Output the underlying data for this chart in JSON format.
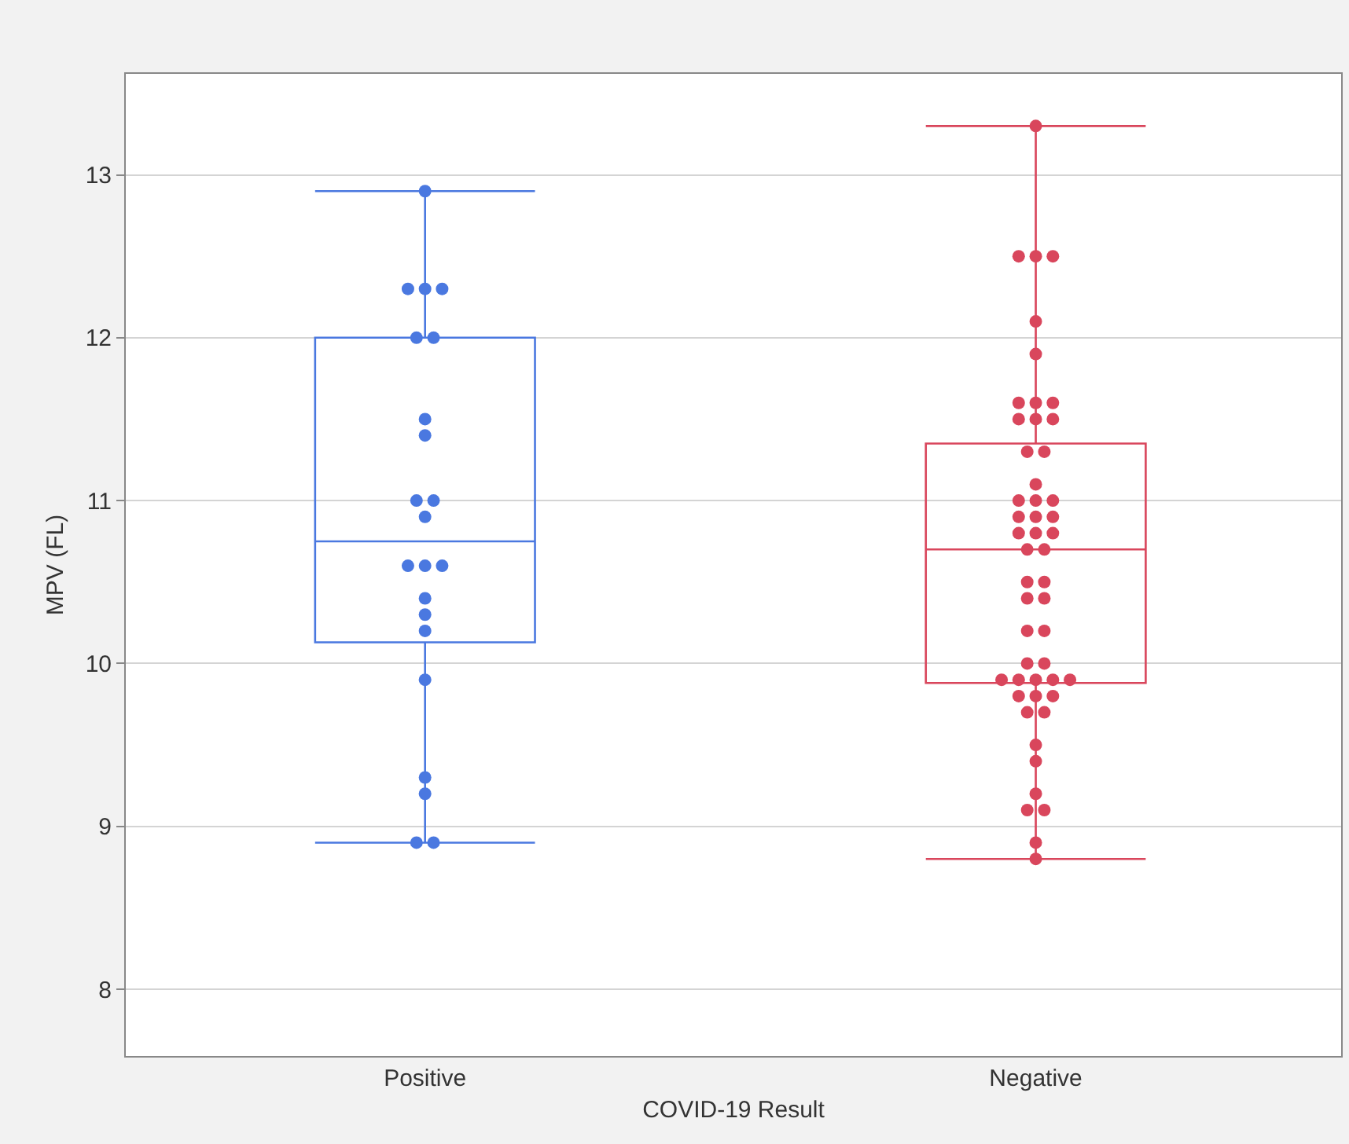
{
  "chart_data": {
    "type": "box",
    "xlabel": "COVID-19 Result",
    "ylabel": "MPV (FL)",
    "categories": [
      "Positive",
      "Negative"
    ],
    "ylim": [
      7.59,
      13.62
    ],
    "yticks": [
      8,
      9,
      10,
      11,
      12,
      13
    ],
    "grid": "y",
    "marker": "circle",
    "series": [
      {
        "color": "#4a78e0",
        "boxes": [
          {
            "low": 8.9,
            "q1": 10.13,
            "median": 10.75,
            "q3": 12.0,
            "high": 12.9
          },
          null
        ]
      },
      {
        "color": "#d9465c",
        "boxes": [
          null,
          {
            "low": 8.8,
            "q1": 9.88,
            "median": 10.7,
            "q3": 11.35,
            "high": 13.3
          }
        ]
      },
      {
        "type": "scatter",
        "color": "#4a78e0",
        "x": [
          "Positive",
          "Positive",
          "Positive",
          "Positive",
          "Positive",
          "Positive",
          "Positive",
          "Positive",
          "Positive",
          "Positive",
          "Positive",
          "Positive",
          "Positive",
          "Positive",
          "Positive",
          "Positive",
          "Positive",
          "Positive",
          "Positive",
          "Positive",
          "Positive",
          "Positive"
        ],
        "values": [
          12.9,
          12.3,
          12.3,
          12.3,
          12.0,
          12.0,
          11.5,
          11.4,
          11.0,
          11.0,
          10.9,
          10.6,
          10.6,
          10.6,
          10.4,
          10.3,
          10.2,
          9.9,
          9.3,
          9.2,
          8.9,
          8.9
        ]
      },
      {
        "type": "scatter",
        "color": "#d9465c",
        "x": [
          "Negative",
          "Negative",
          "Negative",
          "Negative",
          "Negative",
          "Negative",
          "Negative",
          "Negative",
          "Negative",
          "Negative",
          "Negative",
          "Negative",
          "Negative",
          "Negative",
          "Negative",
          "Negative",
          "Negative",
          "Negative",
          "Negative",
          "Negative",
          "Negative",
          "Negative",
          "Negative",
          "Negative",
          "Negative",
          "Negative",
          "Negative",
          "Negative",
          "Negative",
          "Negative",
          "Negative",
          "Negative",
          "Negative",
          "Negative",
          "Negative",
          "Negative",
          "Negative",
          "Negative",
          "Negative",
          "Negative",
          "Negative",
          "Negative",
          "Negative",
          "Negative",
          "Negative",
          "Negative",
          "Negative",
          "Negative",
          "Negative",
          "Negative",
          "Negative"
        ],
        "values": [
          13.3,
          12.5,
          12.5,
          12.5,
          12.1,
          11.9,
          11.6,
          11.6,
          11.6,
          11.5,
          11.5,
          11.5,
          11.3,
          11.3,
          11.1,
          11.0,
          11.0,
          11.0,
          10.9,
          10.9,
          10.9,
          10.8,
          10.8,
          10.8,
          10.7,
          10.7,
          10.5,
          10.5,
          10.4,
          10.4,
          10.2,
          10.2,
          10.0,
          10.0,
          9.9,
          9.9,
          9.9,
          9.9,
          9.9,
          9.8,
          9.8,
          9.8,
          9.7,
          9.7,
          9.5,
          9.4,
          9.2,
          9.1,
          9.1,
          8.9,
          8.8
        ]
      }
    ]
  }
}
